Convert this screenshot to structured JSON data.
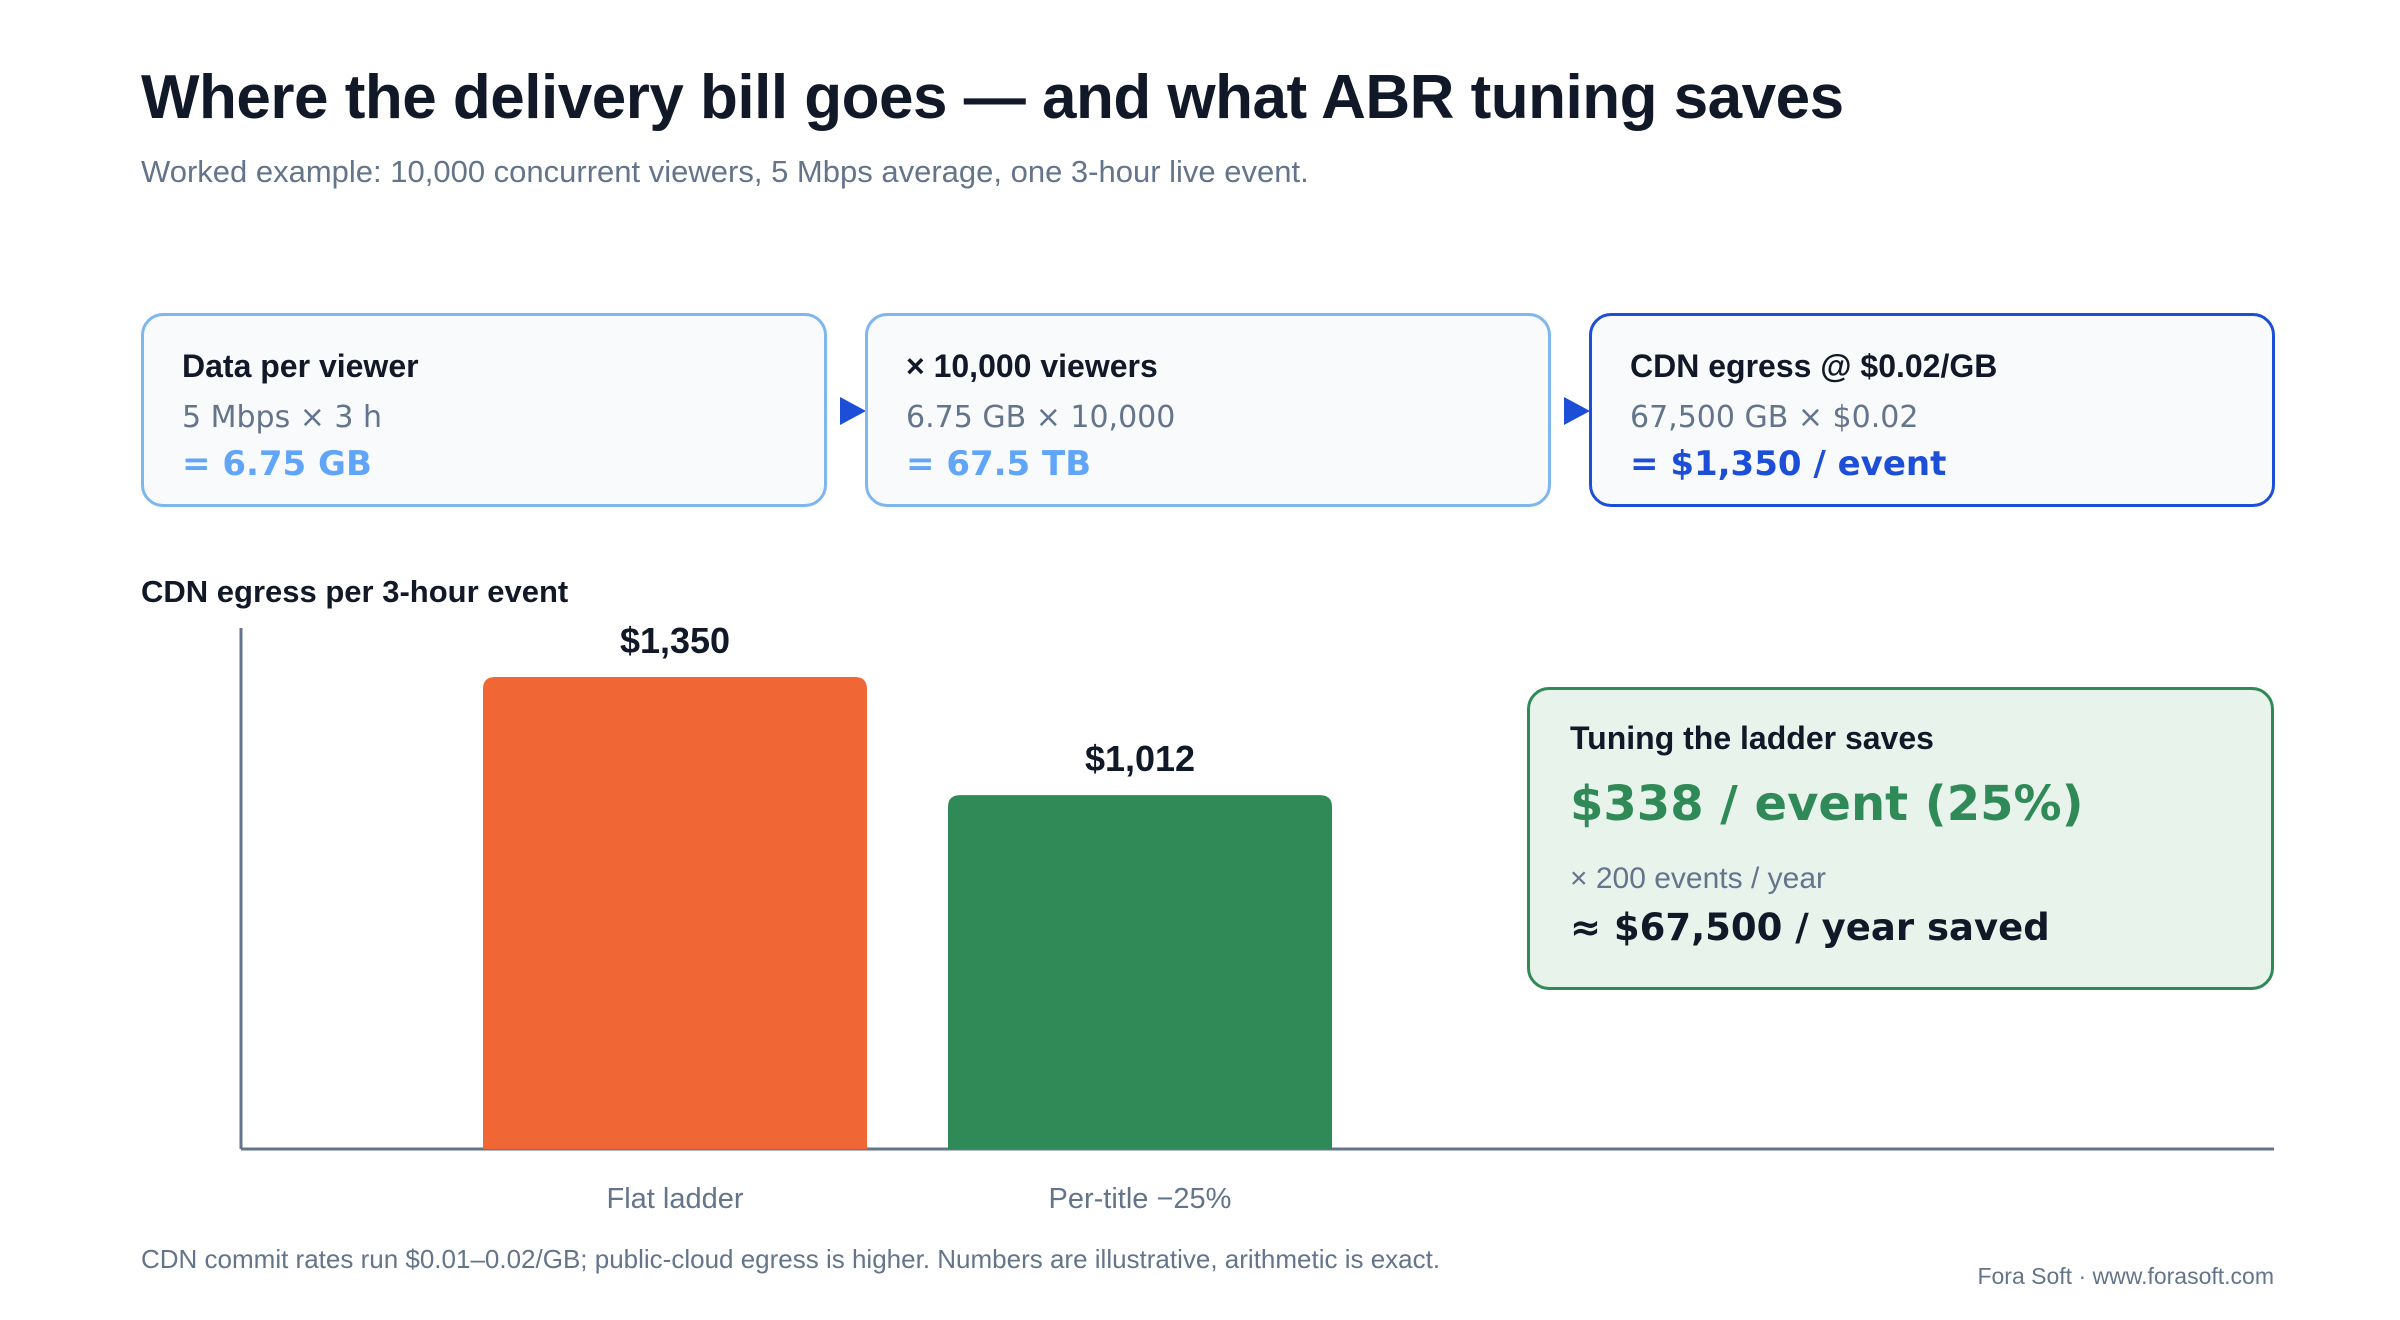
{
  "header": {
    "title": "Where the delivery bill goes — and what ABR tuning saves",
    "subtitle": "Worked example: 10,000 concurrent viewers, 5 Mbps average, one 3-hour live event."
  },
  "steps": [
    {
      "heading": "Data per viewer",
      "calc": "5 Mbps × 3 h",
      "result": "= 6.75 GB"
    },
    {
      "heading": "× 10,000 viewers",
      "calc": "6.75 GB × 10,000",
      "result": "= 67.5 TB"
    },
    {
      "heading": "CDN egress @ $0.02/GB",
      "calc": "67,500 GB × $0.02",
      "result": "= $1,350 / event"
    }
  ],
  "colors": {
    "accent_blue": "#1d4ed8",
    "light_blue": "#60a5fa",
    "flat_bar": "#f06634",
    "tuned_bar": "#2f8a57",
    "axis": "#64748b"
  },
  "chart_data": {
    "type": "bar",
    "title": "CDN egress per 3-hour event",
    "categories": [
      "Flat ladder",
      "Per-title −25%"
    ],
    "values": [
      1350,
      1012
    ],
    "data_labels": [
      "$1,350",
      "$1,012"
    ],
    "xlabel": "",
    "ylabel": "",
    "ylim": [
      0,
      1500
    ],
    "grid": false
  },
  "savings": {
    "heading": "Tuning the ladder saves",
    "per_event": "$338 / event (25%)",
    "multiplier": "× 200 events / year",
    "per_year": "≈ $67,500 / year saved"
  },
  "footer": {
    "note": "CDN commit rates run $0.01–0.02/GB; public-cloud egress is higher. Numbers are illustrative, arithmetic is exact.",
    "credit": "Fora Soft · www.forasoft.com"
  }
}
